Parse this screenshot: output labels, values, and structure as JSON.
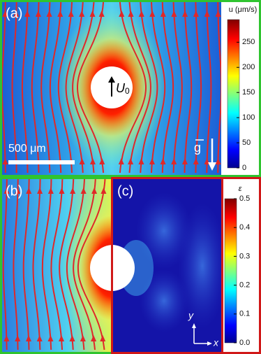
{
  "panels": {
    "a": {
      "label": "(a)",
      "velocity_label": "U",
      "velocity_subscript": "0",
      "scale_bar": "500 μm",
      "gravity_label": "g"
    },
    "b": {
      "label": "(b)"
    },
    "c": {
      "label": "(c)",
      "axis_y": "y",
      "axis_x": "x"
    }
  },
  "colorbars": [
    {
      "title": "u (μm/s)",
      "range": [
        0,
        295
      ],
      "ticks": [
        0,
        50,
        100,
        150,
        200,
        250
      ]
    },
    {
      "title": "ε",
      "range": [
        0,
        0.5
      ],
      "ticks": [
        {
          "value": 0,
          "label": "0.0"
        },
        0.1,
        0.2,
        0.3,
        0.4,
        0.5
      ]
    }
  ]
}
